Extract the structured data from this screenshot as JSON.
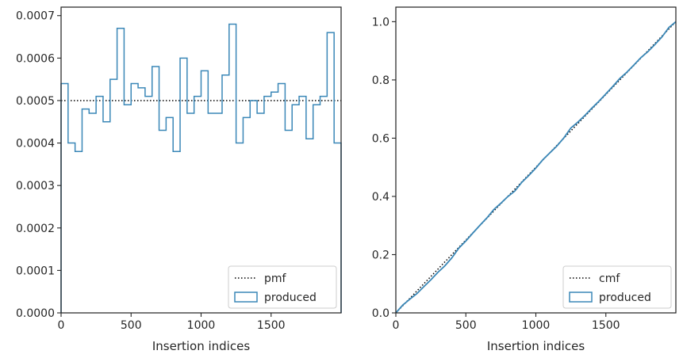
{
  "chart_data": [
    {
      "type": "step",
      "xlabel": "Insertion indices",
      "ylabel": "",
      "xlim": [
        0,
        2000
      ],
      "ylim": [
        0,
        0.00072
      ],
      "xticks": [
        0,
        500,
        1000,
        1500
      ],
      "xtick_labels": [
        "0",
        "500",
        "1000",
        "1500"
      ],
      "yticks": [
        0,
        0.0001,
        0.0002,
        0.0003,
        0.0004,
        0.0005,
        0.0006,
        0.0007
      ],
      "ytick_labels": [
        "0.0000",
        "0.0001",
        "0.0002",
        "0.0003",
        "0.0004",
        "0.0005",
        "0.0006",
        "0.0007"
      ],
      "grid": false,
      "legend_position": "bottom-right",
      "series": [
        {
          "name": "pmf",
          "style": "dotted",
          "color": "#000000",
          "x": [
            0,
            2000
          ],
          "values": [
            0.0005,
            0.0005
          ]
        },
        {
          "name": "produced",
          "style": "step",
          "color": "#3a87b7",
          "bin_edges": [
            0,
            50,
            100,
            150,
            200,
            250,
            300,
            350,
            400,
            450,
            500,
            550,
            600,
            650,
            700,
            750,
            800,
            850,
            900,
            950,
            1000,
            1050,
            1100,
            1150,
            1200,
            1250,
            1300,
            1350,
            1400,
            1450,
            1500,
            1550,
            1600,
            1650,
            1700,
            1750,
            1800,
            1850,
            1900,
            1950,
            2000
          ],
          "values": [
            0.00054,
            0.0004,
            0.00038,
            0.00048,
            0.00047,
            0.00051,
            0.00045,
            0.00055,
            0.00067,
            0.00049,
            0.00054,
            0.00053,
            0.00051,
            0.00058,
            0.00043,
            0.00046,
            0.00038,
            0.0006,
            0.00047,
            0.00051,
            0.00057,
            0.00047,
            0.00047,
            0.00056,
            0.00068,
            0.0004,
            0.00046,
            0.0005,
            0.00047,
            0.00051,
            0.00052,
            0.00054,
            0.00043,
            0.00049,
            0.00051,
            0.00041,
            0.00049,
            0.00051,
            0.00066,
            0.0004
          ]
        }
      ]
    },
    {
      "type": "line",
      "xlabel": "Insertion indices",
      "ylabel": "",
      "xlim": [
        0,
        2000
      ],
      "ylim": [
        0,
        1.05
      ],
      "xticks": [
        0,
        500,
        1000,
        1500
      ],
      "xtick_labels": [
        "0",
        "500",
        "1000",
        "1500"
      ],
      "yticks": [
        0,
        0.2,
        0.4,
        0.6,
        0.8,
        1.0
      ],
      "ytick_labels": [
        "0.0",
        "0.2",
        "0.4",
        "0.6",
        "0.8",
        "1.0"
      ],
      "grid": false,
      "legend_position": "bottom-right",
      "series": [
        {
          "name": "cmf",
          "style": "dotted",
          "color": "#000000",
          "x": [
            0,
            2000
          ],
          "values": [
            0,
            1
          ]
        },
        {
          "name": "produced",
          "style": "solid",
          "color": "#3a87b7",
          "x": [
            0,
            50,
            100,
            150,
            200,
            250,
            300,
            350,
            400,
            450,
            500,
            550,
            600,
            650,
            700,
            750,
            800,
            850,
            900,
            950,
            1000,
            1050,
            1100,
            1150,
            1200,
            1250,
            1300,
            1350,
            1400,
            1450,
            1500,
            1550,
            1600,
            1650,
            1700,
            1750,
            1800,
            1850,
            1900,
            1950,
            2000
          ],
          "values": [
            0,
            0.027,
            0.047,
            0.066,
            0.09,
            0.1135,
            0.139,
            0.1615,
            0.189,
            0.2225,
            0.247,
            0.274,
            0.3005,
            0.326,
            0.355,
            0.3765,
            0.3995,
            0.4185,
            0.4485,
            0.472,
            0.4975,
            0.526,
            0.5495,
            0.573,
            0.601,
            0.635,
            0.655,
            0.678,
            0.703,
            0.7265,
            0.752,
            0.778,
            0.805,
            0.8265,
            0.851,
            0.8765,
            0.897,
            0.9215,
            0.947,
            0.98,
            1.0
          ]
        }
      ]
    }
  ]
}
